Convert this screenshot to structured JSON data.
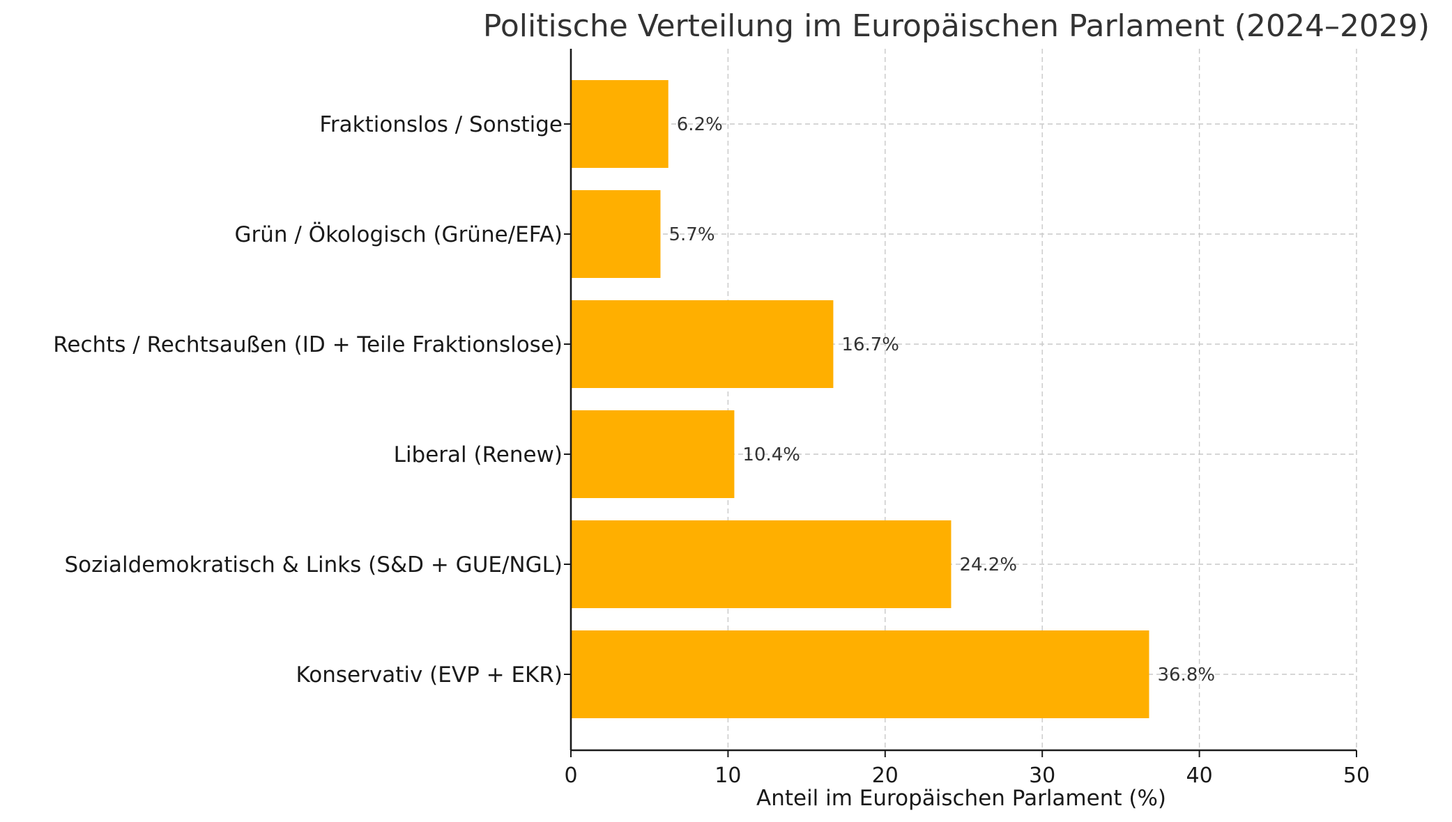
{
  "chart_data": {
    "type": "bar",
    "orientation": "horizontal",
    "title": "Politische Verteilung im Europäischen Parlament (2024–2029)",
    "xlabel": "Anteil im Europäischen Parlament (%)",
    "ylabel": "",
    "xlim": [
      0,
      50
    ],
    "xticks": [
      "0",
      "10",
      "20",
      "30",
      "40",
      "50"
    ],
    "grid": true,
    "bar_color": "#FFAF00",
    "categories": [
      "Konservativ (EVP + EKR)",
      "Sozialdemokratisch & Links (S&D + GUE/NGL)",
      "Liberal (Renew)",
      "Rechts / Rechtsaußen (ID + Teile Fraktionslose)",
      "Grün / Ökologisch (Grüne/EFA)",
      "Fraktionslos / Sonstige"
    ],
    "values": [
      36.8,
      24.2,
      10.4,
      16.7,
      5.7,
      6.2
    ],
    "value_labels": [
      "36.8%",
      "24.2%",
      "10.4%",
      "16.7%",
      "5.7%",
      "6.2%"
    ]
  }
}
